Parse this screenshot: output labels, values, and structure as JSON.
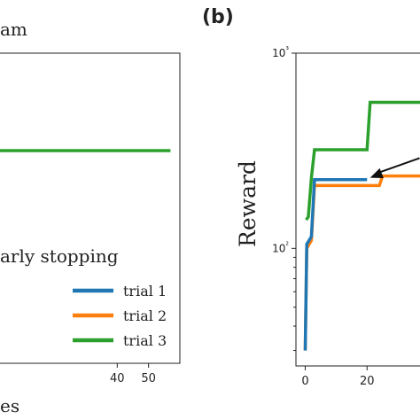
{
  "panels": {
    "left": {
      "title_fragment": "am",
      "annotation": "arly stopping",
      "xlabel_fragment": "es"
    },
    "right": {
      "panel_label": "(b)",
      "ylabel": "Reward"
    }
  },
  "chart_data": [
    {
      "type": "line",
      "title": "am",
      "xlabel": "es",
      "ylabel": "",
      "x_ticks": [
        40,
        50
      ],
      "xlim": [
        2,
        60
      ],
      "y_ticks": [],
      "annotation": "arly stopping",
      "legend_placement": "bottom-right",
      "grid": false,
      "series": [
        {
          "name": "trial 1",
          "color": "#1f77b4",
          "x": [],
          "y": []
        },
        {
          "name": "trial 2",
          "color": "#ff7f0e",
          "x": [],
          "y": []
        },
        {
          "name": "trial 3",
          "color": "#2ca02c",
          "x": [
            2,
            57
          ],
          "y": [
            1,
            1
          ]
        }
      ]
    },
    {
      "type": "line",
      "title": "(b)",
      "xlabel": "",
      "ylabel": "Reward",
      "y_scale": "log",
      "ylim": [
        25,
        1000
      ],
      "xlim": [
        -3,
        40
      ],
      "x_ticks": [
        0,
        20
      ],
      "x_tick_labels": [
        "0",
        "20"
      ],
      "y_ticks": [
        100,
        1000
      ],
      "y_tick_labels": [
        "10²",
        "10³"
      ],
      "grid": false,
      "arrow": {
        "from": [
          37,
          290
        ],
        "to": [
          21,
          230
        ]
      },
      "series": [
        {
          "name": "trial 1",
          "color": "#1f77b4",
          "x": [
            0,
            0.5,
            2,
            3,
            20
          ],
          "y": [
            30,
            105,
            115,
            225,
            225
          ]
        },
        {
          "name": "trial 2",
          "color": "#ff7f0e",
          "x": [
            0,
            0.5,
            2,
            3,
            24,
            25,
            40
          ],
          "y": [
            30,
            100,
            110,
            210,
            210,
            235,
            235
          ]
        },
        {
          "name": "trial 3",
          "color": "#2ca02c",
          "x": [
            0.3,
            1,
            2,
            3,
            20,
            21,
            40
          ],
          "y": [
            140,
            145,
            230,
            320,
            320,
            560,
            560
          ]
        }
      ]
    }
  ]
}
